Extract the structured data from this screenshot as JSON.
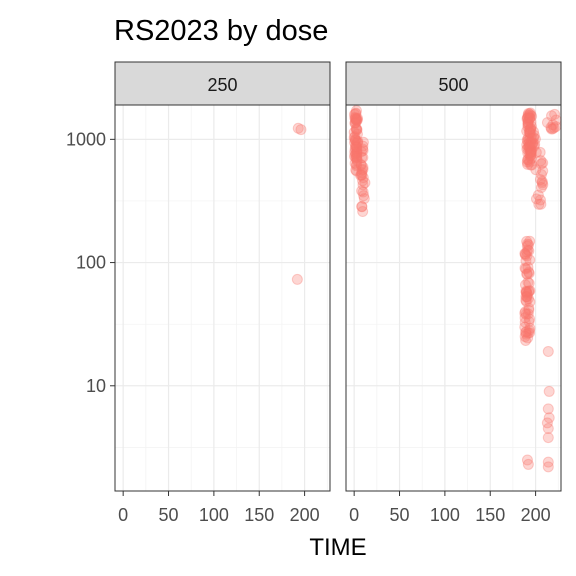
{
  "chart_data": {
    "type": "scatter",
    "title": "RS2023 by dose",
    "xlabel": "TIME",
    "ylabel": "",
    "yscale": "log10",
    "grid": true,
    "legend": "none",
    "point_color": "#F8766D",
    "point_alpha": 0.3,
    "ylim": [
      1.4,
      1900
    ],
    "xlim": [
      -9,
      228
    ],
    "x_ticks": [
      0,
      50,
      100,
      150,
      200
    ],
    "x_tick_labels": [
      "0",
      "50",
      "100",
      "150",
      "200"
    ],
    "y_ticks": [
      10,
      100,
      1000
    ],
    "y_tick_labels": [
      "10",
      "100",
      "1000"
    ],
    "panels": [
      {
        "label": "250",
        "points": [
          {
            "x": 193,
            "y": 1230
          },
          {
            "x": 196,
            "y": 1200
          },
          {
            "x": 192,
            "y": 73
          }
        ]
      },
      {
        "label": "500",
        "groups": [
          {
            "x_range": [
              0,
              4
            ],
            "y_range": [
              550,
              1720
            ],
            "n": 55
          },
          {
            "x_range": [
              7,
              11
            ],
            "y_range": [
              380,
              950
            ],
            "n": 18
          },
          {
            "x_range": [
              8,
              12
            ],
            "y_range": [
              258,
              560
            ],
            "n": 9
          },
          {
            "x_range": [
              190,
              196
            ],
            "y_range": [
              600,
              1650
            ],
            "n": 60
          },
          {
            "x_range": [
              193,
              200
            ],
            "y_range": [
              700,
              1200
            ],
            "n": 16
          },
          {
            "x_range": [
              200,
              208
            ],
            "y_range": [
              280,
              800
            ],
            "n": 18
          },
          {
            "x_range": [
              188,
              194
            ],
            "y_range": [
              23,
              160
            ],
            "n": 60
          },
          {
            "x_range": [
              213,
              223
            ],
            "y_range": [
              1200,
              1700
            ],
            "n": 10
          }
        ],
        "points": [
          {
            "x": 214,
            "y": 19
          },
          {
            "x": 215,
            "y": 9
          },
          {
            "x": 214,
            "y": 6.5
          },
          {
            "x": 215,
            "y": 5.5
          },
          {
            "x": 213,
            "y": 5
          },
          {
            "x": 214,
            "y": 4.5
          },
          {
            "x": 214,
            "y": 3.8
          },
          {
            "x": 191,
            "y": 2.5
          },
          {
            "x": 192,
            "y": 2.3
          },
          {
            "x": 214,
            "y": 2.4
          },
          {
            "x": 214,
            "y": 2.2
          }
        ]
      }
    ]
  }
}
